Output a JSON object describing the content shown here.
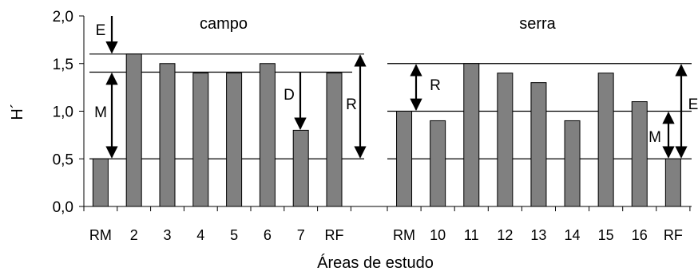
{
  "chart_data": {
    "type": "bar",
    "ylabel": "H´",
    "xlabel": "Áreas de estudo",
    "ylim": [
      0,
      2.0
    ],
    "yticks": [
      "0,0",
      "0,5",
      "1,0",
      "1,5",
      "2,0"
    ],
    "ytick_values": [
      0,
      0.5,
      1.0,
      1.5,
      2.0
    ],
    "grid": false,
    "colors": {
      "bar_fill": "#808080",
      "bar_stroke": "#000000",
      "lines": "#000000"
    },
    "panels": [
      {
        "title": "campo",
        "categories": [
          "RM",
          "2",
          "3",
          "4",
          "5",
          "6",
          "7",
          "RF"
        ],
        "values": [
          0.5,
          1.6,
          1.5,
          1.4,
          1.4,
          1.5,
          0.8,
          1.4
        ],
        "reference_lines": [
          1.6,
          1.41,
          0.5
        ],
        "annotations": [
          {
            "label": "E",
            "from": 2.0,
            "to": 1.6
          },
          {
            "label": "M",
            "from": 1.41,
            "to": 0.5,
            "both": true
          },
          {
            "label": "D",
            "from": 1.41,
            "to": 0.8
          },
          {
            "label": "R",
            "from": 1.6,
            "to": 0.5,
            "both": true
          }
        ]
      },
      {
        "title": "serra",
        "categories": [
          "RM",
          "10",
          "11",
          "12",
          "13",
          "14",
          "15",
          "16",
          "RF"
        ],
        "values": [
          1.0,
          0.9,
          1.5,
          1.4,
          1.3,
          0.9,
          1.4,
          1.1,
          0.5
        ],
        "reference_lines": [
          1.5,
          1.0,
          0.5
        ],
        "annotations": [
          {
            "label": "R",
            "from": 1.5,
            "to": 1.0,
            "both": true
          },
          {
            "label": "M",
            "from": 1.0,
            "to": 0.5,
            "both": true
          },
          {
            "label": "E",
            "from": 1.5,
            "to": 0.5,
            "both": true
          }
        ]
      }
    ]
  }
}
